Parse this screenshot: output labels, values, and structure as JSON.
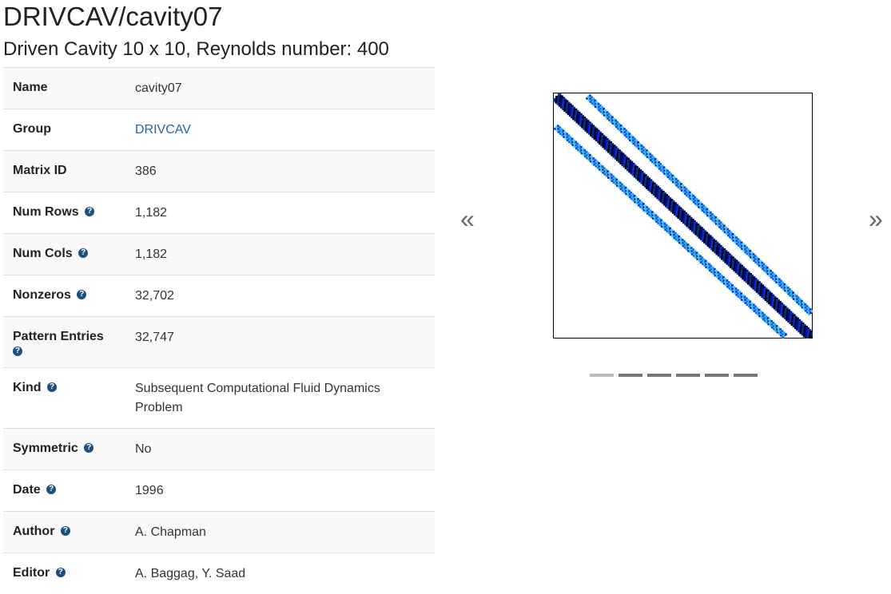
{
  "header": {
    "title": "DRIVCAV/cavity07",
    "subtitle": "Driven Cavity 10 x 10, Reynolds number: 400"
  },
  "properties": [
    {
      "label": "Name",
      "value": "cavity07",
      "help": false,
      "link": false
    },
    {
      "label": "Group",
      "value": "DRIVCAV",
      "help": false,
      "link": true
    },
    {
      "label": "Matrix ID",
      "value": "386",
      "help": false,
      "link": false
    },
    {
      "label": "Num Rows",
      "value": "1,182",
      "help": true,
      "link": false
    },
    {
      "label": "Num Cols",
      "value": "1,182",
      "help": true,
      "link": false
    },
    {
      "label": "Nonzeros",
      "value": "32,702",
      "help": true,
      "link": false
    },
    {
      "label": "Pattern Entries",
      "value": "32,747",
      "help": true,
      "link": false
    },
    {
      "label": "Kind",
      "value": "Subsequent Computational Fluid Dynamics Problem",
      "help": true,
      "link": false
    },
    {
      "label": "Symmetric",
      "value": "No",
      "help": true,
      "link": false
    },
    {
      "label": "Date",
      "value": "1996",
      "help": true,
      "link": false
    },
    {
      "label": "Author",
      "value": "A. Chapman",
      "help": true,
      "link": false
    },
    {
      "label": "Editor",
      "value": "A. Baggag, Y. Saad",
      "help": true,
      "link": false
    }
  ],
  "help_icon": {
    "glyph": "?",
    "name": "question-circle-icon",
    "color": "#1c4e7e"
  },
  "link_color": "#2a6496",
  "carousel": {
    "prev_icon": "double-chevron-left-icon",
    "next_icon": "double-chevron-right-icon",
    "prev_glyph": "«",
    "next_glyph": "»",
    "slide_count": 6,
    "active_slide": 0,
    "image_name": "sparsity-pattern-image"
  }
}
